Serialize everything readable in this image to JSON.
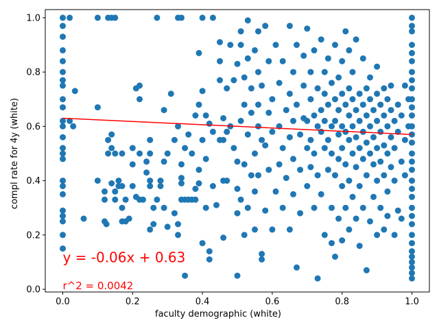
{
  "chart_data": {
    "type": "scatter",
    "title": "",
    "xlabel": "faculty demographic (white)",
    "ylabel": "compl rate for 4y (white)",
    "xlim": [
      -0.05,
      1.05
    ],
    "ylim": [
      -0.01,
      1.03
    ],
    "x_ticks": [
      "0.0",
      "0.2",
      "0.4",
      "0.6",
      "0.8",
      "1.0"
    ],
    "y_ticks": [
      "0.0",
      "0.2",
      "0.4",
      "0.6",
      "0.8",
      "1.0"
    ],
    "grid": false,
    "legend": "none",
    "colors": {
      "points": "#1f77b4",
      "fit_line": "#ff0000"
    },
    "annotations": {
      "equation": "y = -0.06x + 0.63",
      "r_squared": "r^2 = 0.0042"
    },
    "fit_line": {
      "slope": -0.06,
      "intercept": 0.63,
      "x_range": [
        0.0,
        1.0
      ]
    },
    "points": [
      [
        0.0,
        1.0
      ],
      [
        0.0,
        0.97
      ],
      [
        0.0,
        0.93
      ],
      [
        0.0,
        0.88
      ],
      [
        0.0,
        0.84
      ],
      [
        0.0,
        0.8
      ],
      [
        0.0,
        0.77
      ],
      [
        0.0,
        0.75
      ],
      [
        0.0,
        0.7
      ],
      [
        0.0,
        0.67
      ],
      [
        0.0,
        0.62
      ],
      [
        0.0,
        0.6
      ],
      [
        0.0,
        0.56
      ],
      [
        0.0,
        0.52
      ],
      [
        0.0,
        0.5
      ],
      [
        0.0,
        0.48
      ],
      [
        0.0,
        0.4
      ],
      [
        0.0,
        0.38
      ],
      [
        0.0,
        0.35
      ],
      [
        0.0,
        0.29
      ],
      [
        0.0,
        0.27
      ],
      [
        0.0,
        0.25
      ],
      [
        0.0,
        0.2
      ],
      [
        0.0,
        0.15
      ],
      [
        0.02,
        1.0
      ],
      [
        0.02,
        0.62
      ],
      [
        0.03,
        0.6
      ],
      [
        0.035,
        0.73
      ],
      [
        0.06,
        0.26
      ],
      [
        0.1,
        1.0
      ],
      [
        0.13,
        1.0
      ],
      [
        0.14,
        1.0
      ],
      [
        0.15,
        1.0
      ],
      [
        0.27,
        1.0
      ],
      [
        0.33,
        1.0
      ],
      [
        0.34,
        1.0
      ],
      [
        0.4,
        1.0
      ],
      [
        0.43,
        1.0
      ],
      [
        0.1,
        0.4
      ],
      [
        0.1,
        0.67
      ],
      [
        0.12,
        0.36
      ],
      [
        0.12,
        0.33
      ],
      [
        0.12,
        0.25
      ],
      [
        0.125,
        0.24
      ],
      [
        0.13,
        0.55
      ],
      [
        0.13,
        0.5
      ],
      [
        0.14,
        0.57
      ],
      [
        0.14,
        0.52
      ],
      [
        0.14,
        0.39
      ],
      [
        0.15,
        0.33
      ],
      [
        0.15,
        0.36
      ],
      [
        0.15,
        0.5
      ],
      [
        0.16,
        0.4
      ],
      [
        0.16,
        0.38
      ],
      [
        0.17,
        0.38
      ],
      [
        0.17,
        0.3
      ],
      [
        0.17,
        0.25
      ],
      [
        0.17,
        0.5
      ],
      [
        0.18,
        0.33
      ],
      [
        0.18,
        0.25
      ],
      [
        0.19,
        0.26
      ],
      [
        0.2,
        0.52
      ],
      [
        0.2,
        0.46
      ],
      [
        0.2,
        0.38
      ],
      [
        0.21,
        0.34
      ],
      [
        0.21,
        0.74
      ],
      [
        0.22,
        0.75
      ],
      [
        0.22,
        0.7
      ],
      [
        0.22,
        0.33
      ],
      [
        0.22,
        0.5
      ],
      [
        0.23,
        0.33
      ],
      [
        0.24,
        0.43
      ],
      [
        0.24,
        0.47
      ],
      [
        0.25,
        0.5
      ],
      [
        0.25,
        0.55
      ],
      [
        0.25,
        0.4
      ],
      [
        0.25,
        0.38
      ],
      [
        0.25,
        0.22
      ],
      [
        0.26,
        0.3
      ],
      [
        0.26,
        0.24
      ],
      [
        0.27,
        0.33
      ],
      [
        0.28,
        0.4
      ],
      [
        0.28,
        0.38
      ],
      [
        0.29,
        0.66
      ],
      [
        0.29,
        0.47
      ],
      [
        0.29,
        0.3
      ],
      [
        0.3,
        0.5
      ],
      [
        0.3,
        0.23
      ],
      [
        0.31,
        0.72
      ],
      [
        0.32,
        0.28
      ],
      [
        0.32,
        0.55
      ],
      [
        0.33,
        0.2
      ],
      [
        0.33,
        0.6
      ],
      [
        0.33,
        0.24
      ],
      [
        0.34,
        0.33
      ],
      [
        0.34,
        0.41
      ],
      [
        0.34,
        0.46
      ],
      [
        0.34,
        0.39
      ],
      [
        0.35,
        0.05
      ],
      [
        0.35,
        0.33
      ],
      [
        0.35,
        0.52
      ],
      [
        0.36,
        0.33
      ],
      [
        0.36,
        0.57
      ],
      [
        0.37,
        0.5
      ],
      [
        0.37,
        0.33
      ],
      [
        0.38,
        0.64
      ],
      [
        0.38,
        0.33
      ],
      [
        0.38,
        0.37
      ],
      [
        0.39,
        0.68
      ],
      [
        0.39,
        0.87
      ],
      [
        0.39,
        0.39
      ],
      [
        0.39,
        0.44
      ],
      [
        0.4,
        0.17
      ],
      [
        0.4,
        0.55
      ],
      [
        0.4,
        0.73
      ],
      [
        0.41,
        0.64
      ],
      [
        0.41,
        0.3
      ],
      [
        0.41,
        0.48
      ],
      [
        0.42,
        0.61
      ],
      [
        0.42,
        0.11
      ],
      [
        0.42,
        0.14
      ],
      [
        0.43,
        0.58
      ],
      [
        0.43,
        0.38
      ],
      [
        0.44,
        0.31
      ],
      [
        0.45,
        0.55
      ],
      [
        0.45,
        0.84
      ],
      [
        0.45,
        0.77
      ],
      [
        0.45,
        0.91
      ],
      [
        0.46,
        0.63
      ],
      [
        0.46,
        0.4
      ],
      [
        0.46,
        0.55
      ],
      [
        0.46,
        0.19
      ],
      [
        0.47,
        0.74
      ],
      [
        0.47,
        0.58
      ],
      [
        0.47,
        0.4
      ],
      [
        0.48,
        0.9
      ],
      [
        0.48,
        0.6
      ],
      [
        0.49,
        0.77
      ],
      [
        0.49,
        0.52
      ],
      [
        0.5,
        0.05
      ],
      [
        0.5,
        0.37
      ],
      [
        0.5,
        0.28
      ],
      [
        0.5,
        0.47
      ],
      [
        0.5,
        0.83
      ],
      [
        0.51,
        0.9
      ],
      [
        0.51,
        0.95
      ],
      [
        0.51,
        0.62
      ],
      [
        0.51,
        0.33
      ],
      [
        0.52,
        0.46
      ],
      [
        0.52,
        0.68
      ],
      [
        0.52,
        0.78
      ],
      [
        0.52,
        0.2
      ],
      [
        0.53,
        0.99
      ],
      [
        0.53,
        0.85
      ],
      [
        0.53,
        0.57
      ],
      [
        0.53,
        0.3
      ],
      [
        0.54,
        0.42
      ],
      [
        0.54,
        0.74
      ],
      [
        0.54,
        0.65
      ],
      [
        0.55,
        0.88
      ],
      [
        0.55,
        0.5
      ],
      [
        0.55,
        0.36
      ],
      [
        0.55,
        0.22
      ],
      [
        0.56,
        0.6
      ],
      [
        0.56,
        0.8
      ],
      [
        0.56,
        0.95
      ],
      [
        0.56,
        0.68
      ],
      [
        0.56,
        0.42
      ],
      [
        0.57,
        0.55
      ],
      [
        0.57,
        0.75
      ],
      [
        0.57,
        0.13
      ],
      [
        0.57,
        0.11
      ],
      [
        0.58,
        0.97
      ],
      [
        0.58,
        0.53
      ],
      [
        0.58,
        0.29
      ],
      [
        0.59,
        0.65
      ],
      [
        0.59,
        0.84
      ],
      [
        0.59,
        0.44
      ],
      [
        0.6,
        0.58
      ],
      [
        0.6,
        0.7
      ],
      [
        0.6,
        0.22
      ],
      [
        0.61,
        0.9
      ],
      [
        0.61,
        0.36
      ],
      [
        0.62,
        0.46
      ],
      [
        0.62,
        0.6
      ],
      [
        0.62,
        0.76
      ],
      [
        0.63,
        0.84
      ],
      [
        0.63,
        0.3
      ],
      [
        0.63,
        0.52
      ],
      [
        0.64,
        0.66
      ],
      [
        0.64,
        0.41
      ],
      [
        0.65,
        0.97
      ],
      [
        0.65,
        0.56
      ],
      [
        0.65,
        0.72
      ],
      [
        0.65,
        0.22
      ],
      [
        0.66,
        0.8
      ],
      [
        0.66,
        0.62
      ],
      [
        0.66,
        0.48
      ],
      [
        0.66,
        0.35
      ],
      [
        0.67,
        0.08
      ],
      [
        0.67,
        0.68
      ],
      [
        0.67,
        0.9
      ],
      [
        0.68,
        0.57
      ],
      [
        0.68,
        0.44
      ],
      [
        0.68,
        0.28
      ],
      [
        0.69,
        0.75
      ],
      [
        0.69,
        0.63
      ],
      [
        0.69,
        0.86
      ],
      [
        0.7,
        0.52
      ],
      [
        0.7,
        0.38
      ],
      [
        0.7,
        0.62
      ],
      [
        0.7,
        0.96
      ],
      [
        0.71,
        0.7
      ],
      [
        0.71,
        0.55
      ],
      [
        0.71,
        0.45
      ],
      [
        0.71,
        0.8
      ],
      [
        0.72,
        0.64
      ],
      [
        0.72,
        0.3
      ],
      [
        0.72,
        0.88
      ],
      [
        0.72,
        0.5
      ],
      [
        0.73,
        0.04
      ],
      [
        0.73,
        0.6
      ],
      [
        0.73,
        0.74
      ],
      [
        0.73,
        0.42
      ],
      [
        0.74,
        0.66
      ],
      [
        0.74,
        0.58
      ],
      [
        0.74,
        0.92
      ],
      [
        0.74,
        0.35
      ],
      [
        0.75,
        0.72
      ],
      [
        0.75,
        0.52
      ],
      [
        0.75,
        0.62
      ],
      [
        0.75,
        0.2
      ],
      [
        0.75,
        0.8
      ],
      [
        0.76,
        0.68
      ],
      [
        0.76,
        0.55
      ],
      [
        0.76,
        0.44
      ],
      [
        0.76,
        0.85
      ],
      [
        0.77,
        0.6
      ],
      [
        0.77,
        0.76
      ],
      [
        0.77,
        0.5
      ],
      [
        0.77,
        0.3
      ],
      [
        0.77,
        0.17
      ],
      [
        0.78,
        0.7
      ],
      [
        0.78,
        0.62
      ],
      [
        0.78,
        0.42
      ],
      [
        0.78,
        0.9
      ],
      [
        0.78,
        0.12
      ],
      [
        0.79,
        0.66
      ],
      [
        0.79,
        0.57
      ],
      [
        0.79,
        0.48
      ],
      [
        0.79,
        0.78
      ],
      [
        0.79,
        0.26
      ],
      [
        0.8,
        0.72
      ],
      [
        0.8,
        0.6
      ],
      [
        0.8,
        0.52
      ],
      [
        0.8,
        0.38
      ],
      [
        0.8,
        0.84
      ],
      [
        0.8,
        0.18
      ],
      [
        0.81,
        0.68
      ],
      [
        0.81,
        0.58
      ],
      [
        0.81,
        0.46
      ],
      [
        0.81,
        0.95
      ],
      [
        0.81,
        0.3
      ],
      [
        0.82,
        0.74
      ],
      [
        0.82,
        0.64
      ],
      [
        0.82,
        0.55
      ],
      [
        0.82,
        0.4
      ],
      [
        0.82,
        0.88
      ],
      [
        0.82,
        0.22
      ],
      [
        0.83,
        0.7
      ],
      [
        0.83,
        0.6
      ],
      [
        0.83,
        0.5
      ],
      [
        0.83,
        0.8
      ],
      [
        0.83,
        0.34
      ],
      [
        0.84,
        0.66
      ],
      [
        0.84,
        0.56
      ],
      [
        0.84,
        0.45
      ],
      [
        0.84,
        0.92
      ],
      [
        0.84,
        0.26
      ],
      [
        0.85,
        0.72
      ],
      [
        0.85,
        0.62
      ],
      [
        0.85,
        0.52
      ],
      [
        0.85,
        0.38
      ],
      [
        0.85,
        0.16
      ],
      [
        0.86,
        0.68
      ],
      [
        0.86,
        0.58
      ],
      [
        0.86,
        0.48
      ],
      [
        0.86,
        0.85
      ],
      [
        0.86,
        0.3
      ],
      [
        0.87,
        0.74
      ],
      [
        0.87,
        0.64
      ],
      [
        0.87,
        0.54
      ],
      [
        0.87,
        0.42
      ],
      [
        0.87,
        0.07
      ],
      [
        0.88,
        0.7
      ],
      [
        0.88,
        0.6
      ],
      [
        0.88,
        0.5
      ],
      [
        0.88,
        0.78
      ],
      [
        0.88,
        0.25
      ],
      [
        0.89,
        0.66
      ],
      [
        0.89,
        0.56
      ],
      [
        0.89,
        0.46
      ],
      [
        0.89,
        0.34
      ],
      [
        0.9,
        0.72
      ],
      [
        0.9,
        0.62
      ],
      [
        0.9,
        0.52
      ],
      [
        0.9,
        0.4
      ],
      [
        0.9,
        0.82
      ],
      [
        0.9,
        0.2
      ],
      [
        0.91,
        0.68
      ],
      [
        0.91,
        0.58
      ],
      [
        0.91,
        0.47
      ],
      [
        0.91,
        0.3
      ],
      [
        0.92,
        0.74
      ],
      [
        0.92,
        0.64
      ],
      [
        0.92,
        0.53
      ],
      [
        0.92,
        0.42
      ],
      [
        0.92,
        0.22
      ],
      [
        0.93,
        0.7
      ],
      [
        0.93,
        0.6
      ],
      [
        0.93,
        0.5
      ],
      [
        0.93,
        0.36
      ],
      [
        0.93,
        0.27
      ],
      [
        0.94,
        0.66
      ],
      [
        0.94,
        0.56
      ],
      [
        0.94,
        0.45
      ],
      [
        0.94,
        0.75
      ],
      [
        0.95,
        0.62
      ],
      [
        0.95,
        0.52
      ],
      [
        0.95,
        0.4
      ],
      [
        0.95,
        0.2
      ],
      [
        0.96,
        0.58
      ],
      [
        0.96,
        0.68
      ],
      [
        0.96,
        0.29
      ],
      [
        0.97,
        0.64
      ],
      [
        0.97,
        0.47
      ],
      [
        0.97,
        0.26
      ],
      [
        0.98,
        0.75
      ],
      [
        0.98,
        0.55
      ],
      [
        0.98,
        0.42
      ],
      [
        0.99,
        0.6
      ],
      [
        0.99,
        0.7
      ],
      [
        1.0,
        1.0
      ],
      [
        1.0,
        0.97
      ],
      [
        1.0,
        0.95
      ],
      [
        1.0,
        0.9
      ],
      [
        1.0,
        0.87
      ],
      [
        1.0,
        0.84
      ],
      [
        1.0,
        0.8
      ],
      [
        1.0,
        0.77
      ],
      [
        1.0,
        0.74
      ],
      [
        1.0,
        0.7
      ],
      [
        1.0,
        0.67
      ],
      [
        1.0,
        0.64
      ],
      [
        1.0,
        0.6
      ],
      [
        1.0,
        0.57
      ],
      [
        1.0,
        0.54
      ],
      [
        1.0,
        0.5
      ],
      [
        1.0,
        0.47
      ],
      [
        1.0,
        0.44
      ],
      [
        1.0,
        0.4
      ],
      [
        1.0,
        0.37
      ],
      [
        1.0,
        0.34
      ],
      [
        1.0,
        0.3
      ],
      [
        1.0,
        0.27
      ],
      [
        1.0,
        0.24
      ],
      [
        1.0,
        0.2
      ],
      [
        1.0,
        0.17
      ],
      [
        1.0,
        0.14
      ],
      [
        1.0,
        0.12
      ],
      [
        1.0,
        0.1
      ],
      [
        1.0,
        0.08
      ],
      [
        1.0,
        0.06
      ],
      [
        1.0,
        0.04
      ]
    ]
  }
}
